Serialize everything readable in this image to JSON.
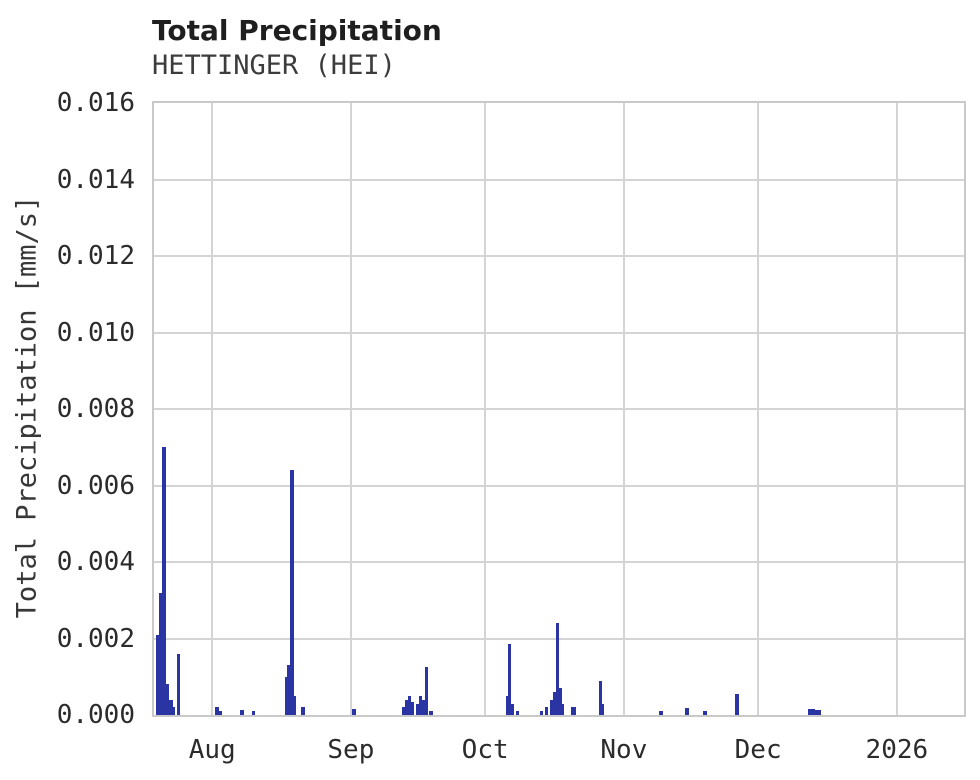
{
  "header": {
    "title": "Total Precipitation",
    "subtitle": "HETTINGER (HEI)"
  },
  "chart_data": {
    "type": "bar",
    "title": "Total Precipitation",
    "subtitle": "HETTINGER (HEI)",
    "xlabel": "",
    "ylabel": "Total Precipitation [mm/s]",
    "ylim": [
      0,
      0.016
    ],
    "y_ticks": [
      0.0,
      0.002,
      0.004,
      0.006,
      0.008,
      0.01,
      0.012,
      0.014,
      0.016
    ],
    "y_tick_decimals": 3,
    "x_range": [
      "2025-07-19T00:00Z",
      "2026-01-16T00:00Z"
    ],
    "x_ticks": [
      {
        "t": "2025-08-01T00:00Z",
        "label": "Aug"
      },
      {
        "t": "2025-09-01T00:00Z",
        "label": "Sep"
      },
      {
        "t": "2025-10-01T00:00Z",
        "label": "Oct"
      },
      {
        "t": "2025-11-01T00:00Z",
        "label": "Nov"
      },
      {
        "t": "2025-12-01T00:00Z",
        "label": "Dec"
      },
      {
        "t": "2026-01-01T00:00Z",
        "label": "2026"
      }
    ],
    "grid": true,
    "legend": false,
    "colors": {
      "bar": "#2a34a2",
      "grid": "#d4d4d4",
      "frame": "#c9c9c9"
    },
    "spikes": [
      {
        "t": "2025-07-19T11:00Z",
        "v": 0.0021,
        "w": 3
      },
      {
        "t": "2025-07-20T03:00Z",
        "v": 0.0032,
        "w": 3
      },
      {
        "t": "2025-07-20T19:00Z",
        "v": 0.007,
        "w": 4
      },
      {
        "t": "2025-07-21T16:00Z",
        "v": 0.0008,
        "w": 3
      },
      {
        "t": "2025-07-22T08:00Z",
        "v": 0.0004,
        "w": 4
      },
      {
        "t": "2025-07-23T06:00Z",
        "v": 0.0002,
        "w": 2
      },
      {
        "t": "2025-07-24T03:00Z",
        "v": 0.0016,
        "w": 3
      },
      {
        "t": "2025-08-01T15:00Z",
        "v": 0.0002,
        "w": 4
      },
      {
        "t": "2025-08-02T12:00Z",
        "v": 0.0001,
        "w": 3
      },
      {
        "t": "2025-08-07T05:00Z",
        "v": 0.00012,
        "w": 4
      },
      {
        "t": "2025-08-09T22:00Z",
        "v": 0.0001,
        "w": 3
      },
      {
        "t": "2025-08-17T07:00Z",
        "v": 0.001,
        "w": 2
      },
      {
        "t": "2025-08-17T17:00Z",
        "v": 0.0013,
        "w": 3
      },
      {
        "t": "2025-08-18T10:00Z",
        "v": 0.0064,
        "w": 4
      },
      {
        "t": "2025-08-19T07:00Z",
        "v": 0.0005,
        "w": 2
      },
      {
        "t": "2025-08-20T19:00Z",
        "v": 0.0002,
        "w": 4
      },
      {
        "t": "2025-09-01T05:00Z",
        "v": 0.00015,
        "w": 4
      },
      {
        "t": "2025-09-12T10:00Z",
        "v": 0.0002,
        "w": 3
      },
      {
        "t": "2025-09-13T02:00Z",
        "v": 0.0004,
        "w": 3
      },
      {
        "t": "2025-09-13T19:00Z",
        "v": 0.0005,
        "w": 3
      },
      {
        "t": "2025-09-14T10:00Z",
        "v": 0.00035,
        "w": 3
      },
      {
        "t": "2025-09-15T14:00Z",
        "v": 0.0003,
        "w": 3
      },
      {
        "t": "2025-09-16T05:00Z",
        "v": 0.0005,
        "w": 3
      },
      {
        "t": "2025-09-16T21:00Z",
        "v": 0.0004,
        "w": 3
      },
      {
        "t": "2025-09-17T14:00Z",
        "v": 0.00125,
        "w": 3
      },
      {
        "t": "2025-09-18T12:00Z",
        "v": 0.0001,
        "w": 4
      },
      {
        "t": "2025-10-05T16:00Z",
        "v": 0.0005,
        "w": 3
      },
      {
        "t": "2025-10-06T05:00Z",
        "v": 0.00185,
        "w": 3
      },
      {
        "t": "2025-10-06T19:00Z",
        "v": 0.0003,
        "w": 3
      },
      {
        "t": "2025-10-07T22:00Z",
        "v": 0.0001,
        "w": 3
      },
      {
        "t": "2025-10-13T07:00Z",
        "v": 0.0001,
        "w": 3
      },
      {
        "t": "2025-10-14T10:00Z",
        "v": 0.0002,
        "w": 3
      },
      {
        "t": "2025-10-15T12:00Z",
        "v": 0.0004,
        "w": 3
      },
      {
        "t": "2025-10-16T05:00Z",
        "v": 0.0006,
        "w": 3
      },
      {
        "t": "2025-10-16T19:00Z",
        "v": 0.0024,
        "w": 3
      },
      {
        "t": "2025-10-17T12:00Z",
        "v": 0.0007,
        "w": 3
      },
      {
        "t": "2025-10-18T00:00Z",
        "v": 0.0003,
        "w": 3
      },
      {
        "t": "2025-10-20T05:00Z",
        "v": 0.0002,
        "w": 5
      },
      {
        "t": "2025-10-26T10:00Z",
        "v": 0.0009,
        "w": 3
      },
      {
        "t": "2025-10-27T02:00Z",
        "v": 0.0003,
        "w": 2
      },
      {
        "t": "2025-11-08T19:00Z",
        "v": 0.0001,
        "w": 4
      },
      {
        "t": "2025-11-14T17:00Z",
        "v": 0.00018,
        "w": 4
      },
      {
        "t": "2025-11-18T17:00Z",
        "v": 0.0001,
        "w": 4
      },
      {
        "t": "2025-11-25T19:00Z",
        "v": 0.00055,
        "w": 4
      },
      {
        "t": "2025-12-12T02:00Z",
        "v": 0.00015,
        "w": 7
      },
      {
        "t": "2025-12-13T17:00Z",
        "v": 0.00014,
        "w": 6
      }
    ]
  }
}
